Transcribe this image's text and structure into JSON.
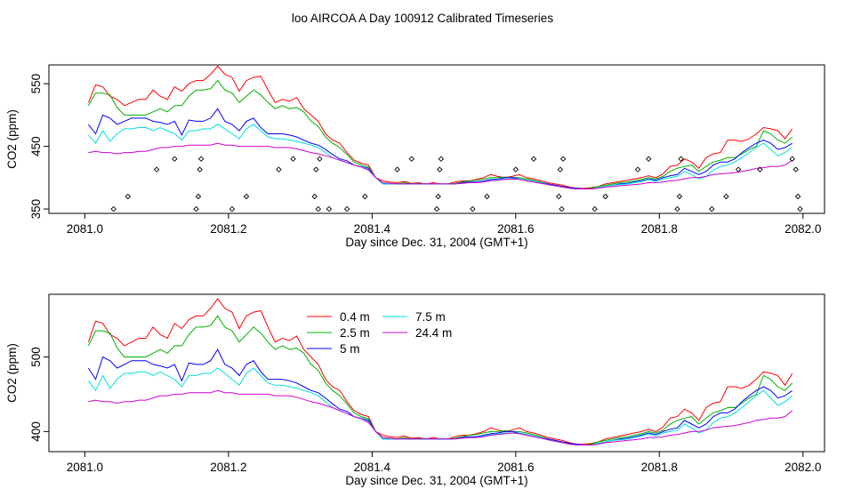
{
  "figure_title": "loo AIRCOA A  Day 100912  Calibrated Timeseries",
  "chart_data": [
    {
      "type": "line",
      "title": "",
      "xlabel": "Day since Dec. 31, 2004 (GMT+1)",
      "ylabel": "CO2 (ppm)",
      "xlim": [
        2080.95,
        2082.03
      ],
      "ylim": [
        343,
        580
      ],
      "xticks": [
        2081.0,
        2081.2,
        2081.4,
        2081.6,
        2081.8,
        2082.0
      ],
      "xtick_labels": [
        "2081.0",
        "2081.2",
        "2081.4",
        "2081.6",
        "2081.8",
        "2082.0"
      ],
      "yticks": [
        350,
        450,
        550
      ],
      "ytick_labels": [
        "350",
        "450",
        "550"
      ],
      "legend": "none",
      "grid": false,
      "x": [
        2081.005,
        2081.015,
        2081.025,
        2081.035,
        2081.045,
        2081.055,
        2081.065,
        2081.075,
        2081.085,
        2081.095,
        2081.105,
        2081.115,
        2081.125,
        2081.135,
        2081.145,
        2081.155,
        2081.165,
        2081.175,
        2081.185,
        2081.195,
        2081.205,
        2081.215,
        2081.225,
        2081.235,
        2081.245,
        2081.255,
        2081.265,
        2081.275,
        2081.285,
        2081.295,
        2081.305,
        2081.315,
        2081.325,
        2081.335,
        2081.345,
        2081.355,
        2081.365,
        2081.375,
        2081.385,
        2081.395,
        2081.405,
        2081.415,
        2081.425,
        2081.435,
        2081.445,
        2081.455,
        2081.465,
        2081.475,
        2081.485,
        2081.495,
        2081.505,
        2081.515,
        2081.525,
        2081.535,
        2081.545,
        2081.555,
        2081.565,
        2081.575,
        2081.585,
        2081.595,
        2081.605,
        2081.615,
        2081.625,
        2081.635,
        2081.645,
        2081.655,
        2081.665,
        2081.675,
        2081.685,
        2081.695,
        2081.705,
        2081.715,
        2081.725,
        2081.735,
        2081.745,
        2081.755,
        2081.765,
        2081.775,
        2081.785,
        2081.795,
        2081.805,
        2081.815,
        2081.825,
        2081.835,
        2081.845,
        2081.855,
        2081.865,
        2081.875,
        2081.885,
        2081.895,
        2081.905,
        2081.915,
        2081.925,
        2081.935,
        2081.945,
        2081.955,
        2081.965,
        2081.975,
        2081.985
      ],
      "series": [
        {
          "name": "0.4 m",
          "color": "#ff0000",
          "values": [
            520,
            548,
            545,
            530,
            525,
            515,
            520,
            525,
            525,
            540,
            530,
            525,
            545,
            538,
            550,
            555,
            555,
            565,
            578,
            565,
            560,
            538,
            555,
            560,
            562,
            540,
            520,
            525,
            522,
            528,
            510,
            500,
            490,
            470,
            460,
            455,
            440,
            428,
            423,
            420,
            400,
            395,
            393,
            392,
            394,
            391,
            392,
            390,
            392,
            390,
            390,
            393,
            395,
            395,
            397,
            400,
            405,
            402,
            400,
            402,
            405,
            400,
            398,
            395,
            392,
            390,
            388,
            385,
            383,
            383,
            384,
            386,
            390,
            392,
            394,
            396,
            398,
            400,
            403,
            400,
            406,
            418,
            420,
            430,
            425,
            415,
            432,
            438,
            440,
            460,
            460,
            458,
            462,
            470,
            480,
            478,
            475,
            462,
            478
          ]
        },
        {
          "name": "2.5 m",
          "color": "#00b000",
          "values": [
            515,
            535,
            535,
            532,
            512,
            500,
            500,
            500,
            500,
            505,
            510,
            505,
            515,
            515,
            530,
            540,
            540,
            542,
            555,
            540,
            535,
            520,
            530,
            540,
            532,
            520,
            510,
            515,
            510,
            512,
            505,
            490,
            482,
            465,
            455,
            448,
            437,
            425,
            420,
            417,
            400,
            392,
            391,
            390,
            392,
            390,
            391,
            390,
            390,
            390,
            390,
            391,
            393,
            395,
            396,
            398,
            400,
            400,
            401,
            400,
            400,
            398,
            396,
            393,
            390,
            388,
            386,
            384,
            383,
            382,
            383,
            386,
            388,
            390,
            392,
            393,
            395,
            397,
            400,
            398,
            402,
            410,
            415,
            418,
            420,
            410,
            418,
            425,
            428,
            432,
            432,
            438,
            445,
            450,
            475,
            470,
            460,
            455,
            465
          ]
        },
        {
          "name": "5 m",
          "color": "#0000ff",
          "values": [
            485,
            470,
            500,
            495,
            485,
            490,
            495,
            495,
            495,
            490,
            488,
            485,
            490,
            468,
            492,
            490,
            490,
            495,
            510,
            490,
            485,
            475,
            490,
            495,
            480,
            470,
            470,
            470,
            468,
            465,
            460,
            455,
            452,
            445,
            437,
            430,
            427,
            420,
            418,
            415,
            400,
            390,
            390,
            390,
            390,
            390,
            390,
            390,
            390,
            390,
            390,
            390,
            392,
            393,
            393,
            395,
            397,
            398,
            400,
            400,
            398,
            396,
            394,
            392,
            390,
            388,
            386,
            384,
            383,
            382,
            382,
            384,
            386,
            388,
            390,
            391,
            393,
            395,
            398,
            396,
            400,
            403,
            405,
            415,
            410,
            405,
            410,
            420,
            425,
            425,
            430,
            440,
            448,
            455,
            460,
            455,
            445,
            448,
            455
          ]
        },
        {
          "name": "7.5 m",
          "color": "#00e0e0",
          "values": [
            468,
            455,
            475,
            458,
            470,
            478,
            478,
            480,
            480,
            475,
            480,
            475,
            470,
            460,
            475,
            475,
            478,
            478,
            485,
            478,
            470,
            462,
            478,
            485,
            475,
            465,
            462,
            462,
            460,
            458,
            455,
            452,
            448,
            440,
            432,
            428,
            424,
            420,
            418,
            413,
            400,
            390,
            390,
            390,
            390,
            390,
            390,
            390,
            390,
            390,
            390,
            390,
            391,
            392,
            392,
            394,
            396,
            397,
            398,
            398,
            398,
            396,
            394,
            392,
            389,
            387,
            385,
            383,
            382,
            382,
            382,
            384,
            386,
            388,
            389,
            390,
            392,
            394,
            397,
            394,
            398,
            400,
            402,
            410,
            405,
            398,
            402,
            412,
            418,
            420,
            425,
            432,
            440,
            448,
            455,
            445,
            435,
            440,
            448
          ]
        },
        {
          "name": "24.4 m",
          "color": "#d000d0",
          "values": [
            440,
            442,
            440,
            440,
            438,
            440,
            440,
            442,
            442,
            445,
            448,
            448,
            450,
            450,
            452,
            452,
            452,
            452,
            455,
            452,
            452,
            450,
            450,
            450,
            450,
            450,
            448,
            448,
            448,
            446,
            443,
            440,
            438,
            435,
            432,
            428,
            424,
            420,
            417,
            412,
            400,
            392,
            391,
            390,
            390,
            390,
            390,
            390,
            390,
            390,
            390,
            390,
            391,
            392,
            392,
            393,
            395,
            396,
            397,
            398,
            397,
            395,
            393,
            391,
            389,
            387,
            385,
            383,
            382,
            382,
            382,
            383,
            385,
            386,
            387,
            388,
            389,
            390,
            392,
            392,
            393,
            395,
            396,
            398,
            400,
            400,
            402,
            405,
            406,
            407,
            408,
            410,
            412,
            415,
            416,
            418,
            418,
            420,
            428
          ]
        }
      ],
      "markers": {
        "symbol": "diamond",
        "x": [
          2081.04,
          2081.06,
          2081.1,
          2081.125,
          2081.155,
          2081.158,
          2081.16,
          2081.162,
          2081.205,
          2081.225,
          2081.27,
          2081.29,
          2081.32,
          2081.322,
          2081.325,
          2081.327,
          2081.34,
          2081.365,
          2081.39,
          2081.435,
          2081.455,
          2081.49,
          2081.492,
          2081.494,
          2081.496,
          2081.54,
          2081.56,
          2081.6,
          2081.625,
          2081.66,
          2081.662,
          2081.664,
          2081.666,
          2081.71,
          2081.725,
          2081.77,
          2081.785,
          2081.825,
          2081.828,
          2081.83,
          2081.873,
          2081.893,
          2081.91,
          2081.94,
          2081.985,
          2081.99,
          2081.993,
          2081.996
        ],
        "y": [
          350,
          370,
          413,
          430,
          350,
          370,
          413,
          430,
          350,
          370,
          413,
          430,
          370,
          413,
          350,
          430,
          350,
          350,
          370,
          413,
          430,
          350,
          370,
          413,
          430,
          350,
          370,
          413,
          430,
          370,
          413,
          350,
          430,
          350,
          370,
          413,
          430,
          350,
          370,
          430,
          350,
          370,
          413,
          413,
          430,
          413,
          370,
          350
        ]
      }
    },
    {
      "type": "line",
      "title": "",
      "xlabel": "Day since Dec. 31, 2004 (GMT+1)",
      "ylabel": "CO2 (ppm)",
      "xlim": [
        2080.95,
        2082.03
      ],
      "ylim": [
        373,
        584
      ],
      "xticks": [
        2081.0,
        2081.2,
        2081.4,
        2081.6,
        2081.8,
        2082.0
      ],
      "xtick_labels": [
        "2081.0",
        "2081.2",
        "2081.4",
        "2081.6",
        "2081.8",
        "2082.0"
      ],
      "yticks": [
        400,
        500
      ],
      "ytick_labels": [
        "400",
        "500"
      ],
      "legend": "top-center",
      "legend_entries": [
        {
          "label": "0.4 m",
          "color": "#ff0000"
        },
        {
          "label": "2.5 m",
          "color": "#00b000"
        },
        {
          "label": "5 m",
          "color": "#0000ff"
        },
        {
          "label": "7.5 m",
          "color": "#00e0e0"
        },
        {
          "label": "24.4 m",
          "color": "#d000d0"
        }
      ],
      "grid": false,
      "series_ref": "same series as chart 1"
    }
  ]
}
